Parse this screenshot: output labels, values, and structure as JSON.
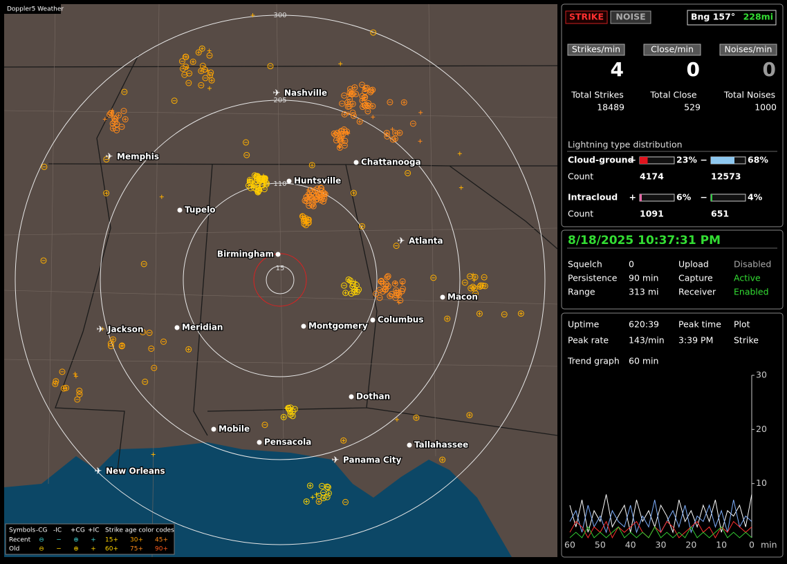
{
  "app_label": "Doppler5 Weather",
  "map": {
    "range_labels": [
      "300",
      "205",
      "110",
      "15"
    ],
    "cities": [
      {
        "name": "Nashville",
        "airport": true
      },
      {
        "name": "Memphis",
        "airport": true
      },
      {
        "name": "Chattanooga",
        "airport": false
      },
      {
        "name": "Huntsville",
        "airport": false
      },
      {
        "name": "Tupelo",
        "airport": false
      },
      {
        "name": "Atlanta",
        "airport": true
      },
      {
        "name": "Birmingham",
        "airport": false
      },
      {
        "name": "Macon",
        "airport": false
      },
      {
        "name": "Columbus",
        "airport": false
      },
      {
        "name": "Montgomery",
        "airport": false
      },
      {
        "name": "Jackson",
        "airport": true
      },
      {
        "name": "Meridian",
        "airport": false
      },
      {
        "name": "Dothan",
        "airport": false
      },
      {
        "name": "Mobile",
        "airport": false
      },
      {
        "name": "Pensacola",
        "airport": false
      },
      {
        "name": "Tallahassee",
        "airport": false
      },
      {
        "name": "Panama City",
        "airport": true
      },
      {
        "name": "New Orleans",
        "airport": true
      }
    ]
  },
  "legend": {
    "symbols": "Symbols",
    "types": [
      "-CG",
      "-IC",
      "+CG",
      "+IC"
    ],
    "age_title": "Strike age color codes",
    "rows": [
      {
        "label": "Recent",
        "ages": [
          "15+",
          "30+",
          "45+"
        ]
      },
      {
        "label": "Old",
        "ages": [
          "60+",
          "75+",
          "90+"
        ]
      }
    ]
  },
  "status": {
    "strike": "STRIKE",
    "noise": "NOISE",
    "bearing": "Bng 157°",
    "distance": "228mi"
  },
  "rates": [
    {
      "label": "Strikes/min",
      "value": 4,
      "color": "#ffffff"
    },
    {
      "label": "Close/min",
      "value": 0,
      "color": "#ffffff"
    },
    {
      "label": "Noises/min",
      "value": 0,
      "color": "#9a9a9a"
    }
  ],
  "totals": [
    {
      "label": "Total Strikes",
      "value": 18489
    },
    {
      "label": "Total Close",
      "value": 529
    },
    {
      "label": "Total Noises",
      "value": 1000
    }
  ],
  "distribution": {
    "title": "Lightning type distribution",
    "count_label": "Count",
    "rows": [
      {
        "name": "Cloud-ground",
        "pos": {
          "sign": "+",
          "pct": 23,
          "pct_label": "23%",
          "count": 4174,
          "color": "#e0141e"
        },
        "neg": {
          "sign": "−",
          "pct": 68,
          "pct_label": "68%",
          "count": 12573,
          "color": "#8ec8f0"
        }
      },
      {
        "name": "Intracloud",
        "pos": {
          "sign": "+",
          "pct": 6,
          "pct_label": "6%",
          "count": 1091,
          "color": "#e66aa8"
        },
        "neg": {
          "sign": "−",
          "pct": 4,
          "pct_label": "4%",
          "count": 651,
          "color": "#2ecc40"
        }
      }
    ]
  },
  "clock": "8/18/2025 10:37:31 PM",
  "settings": [
    [
      {
        "text": "Squelch",
        "color": "#ffffff"
      },
      {
        "text": "0",
        "color": "#ffffff"
      },
      {
        "text": "Upload",
        "color": "#ffffff"
      },
      {
        "text": "Disabled",
        "color": "#aaaaaa"
      }
    ],
    [
      {
        "text": "Persistence",
        "color": "#ffffff"
      },
      {
        "text": "90 min",
        "color": "#ffffff"
      },
      {
        "text": "Capture",
        "color": "#ffffff"
      },
      {
        "text": "Active",
        "color": "#33dd33"
      }
    ],
    [
      {
        "text": "Range",
        "color": "#ffffff"
      },
      {
        "text": "313 mi",
        "color": "#ffffff"
      },
      {
        "text": "Receiver",
        "color": "#ffffff"
      },
      {
        "text": "Enabled",
        "color": "#33dd33"
      }
    ]
  ],
  "stats": [
    [
      "Uptime",
      "620:39",
      "Peak time",
      "Plot"
    ],
    [
      "Peak rate",
      "143/min",
      "3:39 PM",
      "Strike"
    ]
  ],
  "trend": {
    "label": "Trend graph",
    "window": "60 min",
    "ylim": [
      0,
      30
    ],
    "yticks": [
      10,
      20,
      30
    ],
    "xlim": [
      60,
      0
    ],
    "xticks": [
      60,
      50,
      40,
      30,
      20,
      10,
      0
    ],
    "xunit": "min",
    "series": [
      {
        "color": "#ffffff",
        "values": [
          6,
          2,
          7,
          1,
          5,
          3,
          8,
          2,
          4,
          6,
          1,
          7,
          3,
          5,
          2,
          6,
          4,
          1,
          7,
          3,
          5,
          2,
          6,
          3,
          7,
          1,
          5,
          4,
          6,
          2,
          8
        ]
      },
      {
        "color": "#7fb0ff",
        "values": [
          3,
          5,
          1,
          6,
          2,
          4,
          1,
          5,
          3,
          2,
          6,
          1,
          4,
          2,
          7,
          1,
          3,
          5,
          2,
          6,
          1,
          4,
          3,
          6,
          2,
          5,
          1,
          7,
          2,
          4,
          3
        ]
      },
      {
        "color": "#ff3030",
        "values": [
          1,
          3,
          2,
          0,
          2,
          1,
          3,
          0,
          2,
          1,
          2,
          3,
          1,
          0,
          2,
          1,
          3,
          2,
          0,
          1,
          2,
          3,
          1,
          2,
          0,
          2,
          1,
          3,
          2,
          1,
          2
        ]
      },
      {
        "color": "#33cc33",
        "values": [
          0,
          1,
          0,
          2,
          0,
          1,
          0,
          1,
          2,
          0,
          1,
          0,
          1,
          0,
          2,
          0,
          1,
          0,
          1,
          0,
          2,
          0,
          1,
          0,
          1,
          2,
          0,
          1,
          0,
          1,
          0
        ]
      }
    ]
  }
}
